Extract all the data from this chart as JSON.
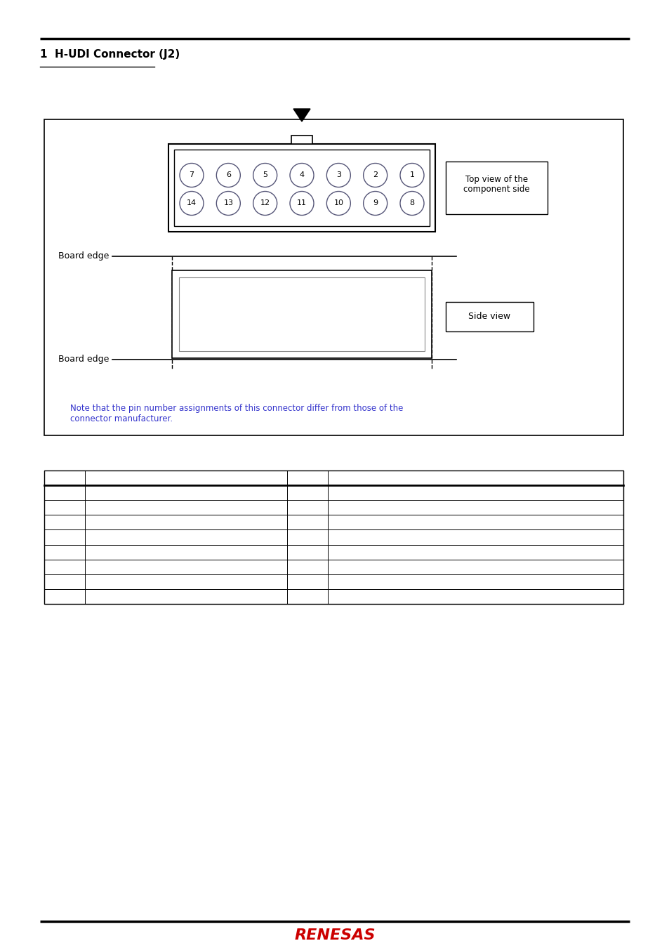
{
  "title_line": "1  H-UDI Connector (J2)",
  "subtitle_underline": true,
  "top_row_pins": [
    7,
    6,
    5,
    4,
    3,
    2,
    1
  ],
  "bottom_row_pins": [
    14,
    13,
    12,
    11,
    10,
    9,
    8
  ],
  "top_view_label": "Top view of the\ncomponent side",
  "side_view_label": "Side view",
  "j2_label": "J2",
  "board_edge_label": "Board edge",
  "note_text": "Note that the pin number assignments of this connector differ from those of the\nconnector manufacturer.",
  "note_color": "#3333cc",
  "table_rows": 8,
  "table_cols": 4,
  "bg_color": "#ffffff",
  "border_color": "#000000",
  "pin_circle_color": "#ffffff",
  "pin_border_color": "#555577",
  "connector_fill": "#e8e8e8",
  "renesas_color": "#cc0000"
}
